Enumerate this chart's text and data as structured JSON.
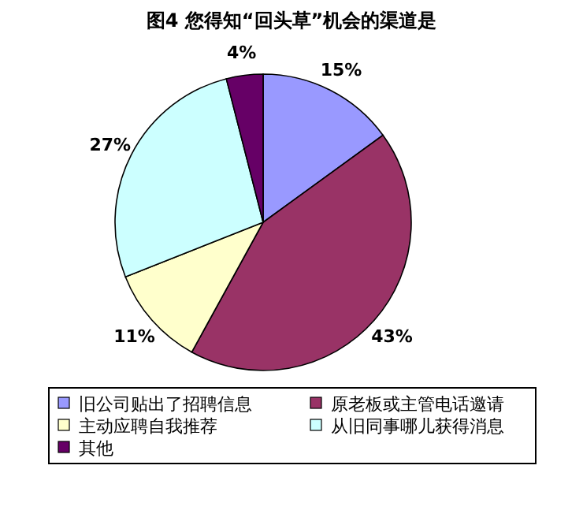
{
  "chart_data": {
    "type": "pie",
    "title": "图4  您得知“回头草”机会的渠道是",
    "categories": [
      "旧公司贴出了招聘信息",
      "原老板或主管电话邀请",
      "主动应聘自我推荐",
      "从旧同事哪儿获得消息",
      "其他"
    ],
    "values": [
      15,
      43,
      11,
      27,
      4
    ],
    "colors": [
      "#9999ff",
      "#993366",
      "#ffffcc",
      "#ccffff",
      "#660066"
    ],
    "value_labels": [
      "15%",
      "43%",
      "11%",
      "27%",
      "4%"
    ],
    "legend": "bottom"
  }
}
